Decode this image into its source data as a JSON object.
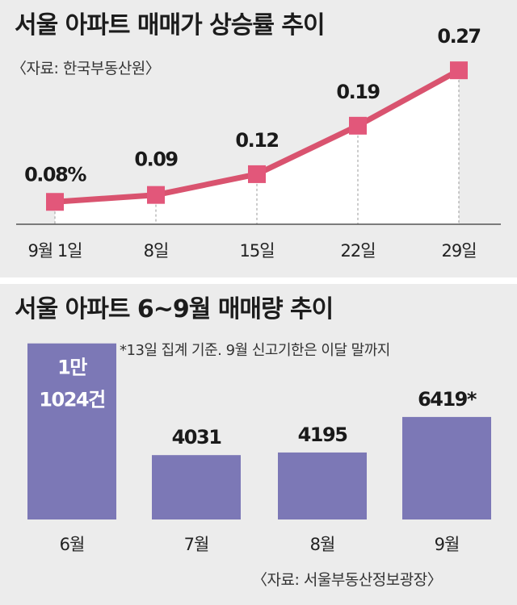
{
  "colors": {
    "line": "#d9536f",
    "marker": "#e2577a",
    "bar": "#7c78b6",
    "area": "#ffffff",
    "background": "#ececec"
  },
  "top": {
    "title": "서울 아파트 매매가 상승률 추이",
    "source": "〈자료: 한국부동산원〉"
  },
  "bottom": {
    "title": "서울 아파트 6~9월 매매량 추이",
    "note": "*13일 집계 기준. 9월 신고기한은 이달 말까지",
    "source": "〈자료: 서울부동산정보광장〉"
  },
  "chart_data": [
    {
      "type": "line",
      "title": "서울 아파트 매매가 상승률 추이",
      "categories": [
        "9월 1일",
        "8일",
        "15일",
        "22일",
        "29일"
      ],
      "values": [
        0.08,
        0.09,
        0.12,
        0.19,
        0.27
      ],
      "data_labels": [
        "0.08%",
        "0.09",
        "0.12",
        "0.19",
        "0.27"
      ],
      "ylim": [
        0.05,
        0.29
      ],
      "fill_below": true
    },
    {
      "type": "bar",
      "title": "서울 아파트 6~9월 매매량 추이",
      "categories": [
        "6월",
        "7월",
        "8월",
        "9월"
      ],
      "values": [
        11024,
        4031,
        4195,
        6419
      ],
      "data_labels": [
        [
          "1만",
          "1024건"
        ],
        [
          "4031"
        ],
        [
          "4195"
        ],
        [
          "6419*"
        ]
      ],
      "ylim": [
        0,
        12000
      ]
    }
  ]
}
